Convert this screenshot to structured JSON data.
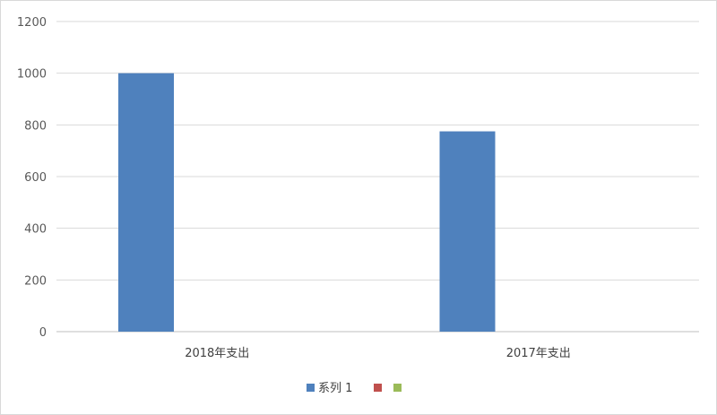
{
  "chart_data": {
    "type": "bar",
    "categories": [
      "2018年支出",
      "2017年支出"
    ],
    "series": [
      {
        "name": "系列 1",
        "values": [
          1000,
          775
        ],
        "color": "#4f81bd"
      },
      {
        "name": "",
        "values": [
          null,
          null
        ],
        "color": "#c0504d"
      },
      {
        "name": "",
        "values": [
          null,
          null
        ],
        "color": "#9bbb59"
      }
    ],
    "ylim": [
      0,
      1200
    ],
    "yticks": [
      "0",
      "200",
      "400",
      "600",
      "800",
      "1000",
      "1200"
    ],
    "grid": true,
    "legend_position": "bottom"
  }
}
